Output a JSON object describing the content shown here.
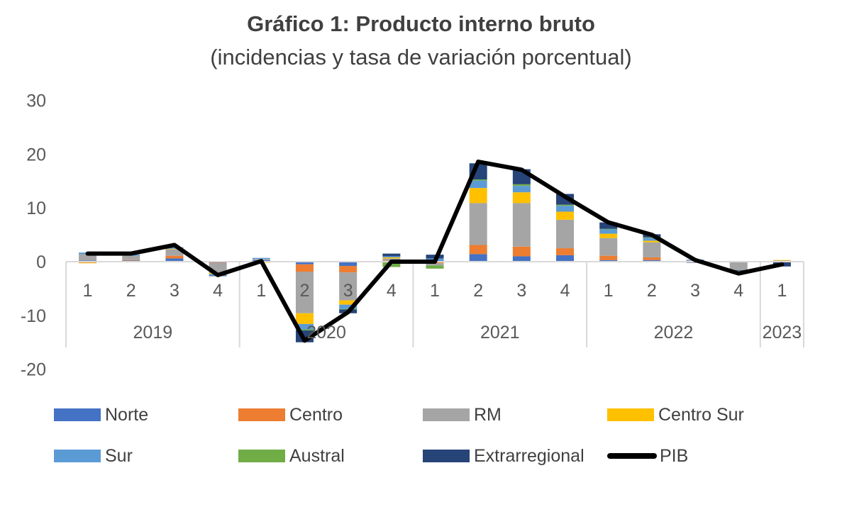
{
  "chart_data": {
    "type": "bar",
    "title": "Gráfico 1: Producto interno bruto",
    "subtitle": "(incidencias y tasa de variación porcentual)",
    "y_ticks": [
      "30",
      "20",
      "10",
      "0",
      "-10",
      "-20"
    ],
    "ylim": [
      -20,
      30
    ],
    "x_quarters": [
      "1",
      "2",
      "3",
      "4",
      "1",
      "2",
      "3",
      "4",
      "1",
      "2",
      "3",
      "4",
      "1",
      "2",
      "3",
      "4",
      "1"
    ],
    "x_years": [
      {
        "label": "2019",
        "span": 4
      },
      {
        "label": "2020",
        "span": 4
      },
      {
        "label": "2021",
        "span": 4
      },
      {
        "label": "2022",
        "span": 4
      },
      {
        "label": "2023",
        "span": 1
      }
    ],
    "series": [
      {
        "name": "Norte",
        "color": "#4472C4",
        "values": [
          0.2,
          0.2,
          0.6,
          -0.2,
          0.3,
          -0.5,
          -0.8,
          0.1,
          0.2,
          1.4,
          1.0,
          1.2,
          0.3,
          0.3,
          0.0,
          0.0,
          0.0
        ]
      },
      {
        "name": "Centro",
        "color": "#ED7D31",
        "values": [
          -0.2,
          0.1,
          0.5,
          -0.1,
          -0.1,
          -1.4,
          -1.2,
          0.1,
          -0.3,
          1.7,
          1.8,
          1.3,
          0.8,
          0.5,
          0.0,
          0.0,
          0.0
        ]
      },
      {
        "name": "RM",
        "color": "#A5A5A5",
        "values": [
          1.2,
          0.8,
          1.2,
          -1.8,
          0.2,
          -7.7,
          -5.2,
          0.4,
          -0.4,
          7.8,
          8.1,
          5.3,
          3.3,
          2.8,
          0.3,
          -1.6,
          0.2
        ]
      },
      {
        "name": "Centro Sur",
        "color": "#FFC000",
        "values": [
          -0.1,
          0.0,
          0.1,
          -0.2,
          -0.1,
          -2.0,
          -0.8,
          0.2,
          0.0,
          2.8,
          2.0,
          1.5,
          0.8,
          0.3,
          0.0,
          0.0,
          0.1
        ]
      },
      {
        "name": "Sur",
        "color": "#5B9BD5",
        "values": [
          0.3,
          0.2,
          0.3,
          -0.3,
          0.2,
          -1.0,
          -0.8,
          0.2,
          0.4,
          1.4,
          1.2,
          1.1,
          0.8,
          0.5,
          0.1,
          0.0,
          0.0
        ]
      },
      {
        "name": "Austral",
        "color": "#70AD47",
        "values": [
          0.0,
          0.0,
          0.0,
          0.0,
          0.0,
          -0.2,
          -0.1,
          -1.0,
          -0.6,
          0.2,
          0.3,
          0.2,
          0.1,
          0.1,
          0.0,
          0.0,
          0.0
        ]
      },
      {
        "name": "Extrarregional",
        "color": "#264478",
        "values": [
          0.0,
          0.0,
          0.0,
          -0.1,
          0.0,
          -2.2,
          -0.7,
          0.5,
          0.7,
          3.0,
          2.8,
          2.0,
          1.2,
          0.6,
          -0.2,
          -0.1,
          -0.9
        ]
      },
      {
        "name": "PIB",
        "color": "#000000",
        "type": "line",
        "values": [
          1.5,
          1.5,
          3.1,
          -2.5,
          0.1,
          -14.7,
          -9.4,
          0.0,
          0.0,
          18.6,
          17.1,
          12.1,
          7.3,
          5.0,
          0.3,
          -2.2,
          -0.5
        ]
      }
    ]
  }
}
